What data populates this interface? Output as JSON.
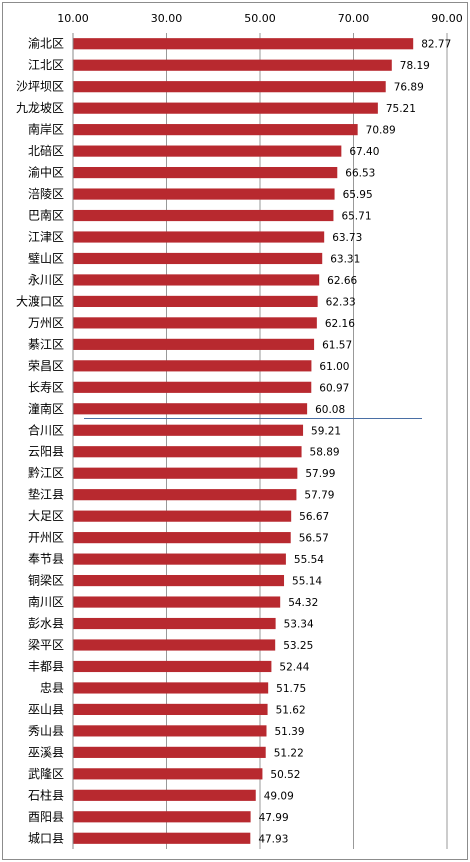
{
  "chart_data": {
    "type": "bar",
    "orientation": "horizontal",
    "title": "",
    "xlabel": "",
    "ylabel": "",
    "xlim": [
      10,
      90
    ],
    "xticks": [
      "10.00",
      "30.00",
      "50.00",
      "70.00",
      "90.00"
    ],
    "grid": true,
    "legend": "none",
    "bar_color": "#b8292f",
    "categories": [
      "渝北区",
      "江北区",
      "沙坪坝区",
      "九龙坡区",
      "南岸区",
      "北碚区",
      "渝中区",
      "涪陵区",
      "巴南区",
      "江津区",
      "璧山区",
      "永川区",
      "大渡口区",
      "万州区",
      "綦江区",
      "荣昌区",
      "长寿区",
      "潼南区",
      "合川区",
      "云阳县",
      "黔江区",
      "垫江县",
      "大足区",
      "开州区",
      "奉节县",
      "铜梁区",
      "南川区",
      "彭水县",
      "梁平区",
      "丰都县",
      "忠县",
      "巫山县",
      "秀山县",
      "巫溪县",
      "武隆区",
      "石柱县",
      "酉阳县",
      "城口县"
    ],
    "values": [
      82.77,
      78.19,
      76.89,
      75.21,
      70.89,
      67.4,
      66.53,
      65.95,
      65.71,
      63.73,
      63.31,
      62.66,
      62.33,
      62.16,
      61.57,
      61.0,
      60.97,
      60.08,
      59.21,
      58.89,
      57.99,
      57.79,
      56.67,
      56.57,
      55.54,
      55.14,
      54.32,
      53.34,
      53.25,
      52.44,
      51.75,
      51.62,
      51.39,
      51.22,
      50.52,
      49.09,
      47.99,
      47.93
    ],
    "value_labels": [
      "82.77",
      "78.19",
      "76.89",
      "75.21",
      "70.89",
      "67.40",
      "66.53",
      "65.95",
      "65.71",
      "63.73",
      "63.31",
      "62.66",
      "62.33",
      "62.16",
      "61.57",
      "61.00",
      "60.97",
      "60.08",
      "59.21",
      "58.89",
      "57.99",
      "57.79",
      "56.67",
      "56.57",
      "55.54",
      "55.14",
      "54.32",
      "53.34",
      "53.25",
      "52.44",
      "51.75",
      "51.62",
      "51.39",
      "51.22",
      "50.52",
      "49.09",
      "47.99",
      "47.93"
    ],
    "reference_line": {
      "after_category": "潼南区"
    }
  }
}
